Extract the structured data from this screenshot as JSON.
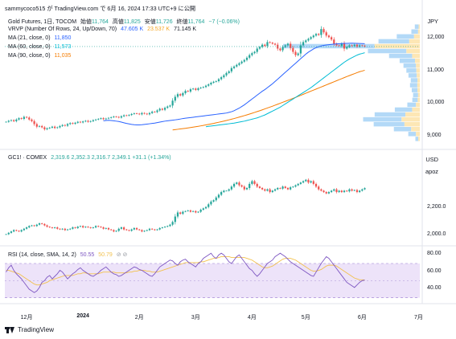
{
  "header": {
    "publish_line": "sammycoco515 が TradingView.com で 6月 16, 2024 17:33 UTC+9 に公開"
  },
  "colors": {
    "up": "#26a69a",
    "down": "#ef5350",
    "ma21": "#2962ff",
    "ma60": "#00bcd4",
    "ma90": "#f57c00",
    "rsi": "#7e57c2",
    "rsi_ma": "#fdd835",
    "rsi_band": "#e9dcf7",
    "vrvp_up": "#b3d9f7",
    "vrvp_down": "#fde7b5"
  },
  "footer": {
    "brand": "TradingView"
  },
  "currency_top": "JPY",
  "currency_mid": "USD",
  "chart_data": [
    {
      "id": "gold_futures",
      "type": "candlestick",
      "title": "Gold Futures, 1日, TOCOM",
      "ohlc_labels": {
        "open_label": "始値",
        "open": "11,764",
        "high_label": "高値",
        "high": "11,825",
        "low_label": "安値",
        "low": "11,726",
        "close_label": "終値",
        "close": "11,764",
        "change": "−7 (−0.06%)"
      },
      "legend": [
        {
          "label": "VRVP (Number Of Rows, 24, Up/Down, 70)",
          "values": [
            "47.605 K",
            "23.537 K",
            "71.145 K"
          ]
        },
        {
          "label": "MA (21, close, 0)",
          "values": [
            "11,850"
          ]
        },
        {
          "label": "MA (60, close, 0)",
          "values": [
            "11,573"
          ]
        },
        {
          "label": "MA (90, close, 0)",
          "values": [
            "11,035"
          ]
        }
      ],
      "y_ticks": [
        "12,000",
        "11,000",
        "10,000",
        "9,000"
      ],
      "y_tick_values": [
        12000,
        11000,
        10000,
        9000
      ],
      "ylim": [
        8700,
        12700
      ],
      "close": [
        9450,
        9480,
        9500,
        9470,
        9520,
        9560,
        9540,
        9600,
        9580,
        9520,
        9470,
        9380,
        9300,
        9320,
        9280,
        9220,
        9250,
        9270,
        9300,
        9260,
        9280,
        9320,
        9350,
        9330,
        9380,
        9410,
        9390,
        9420,
        9450,
        9430,
        9460,
        9480,
        9450,
        9470,
        9500,
        9520,
        9540,
        9560,
        9530,
        9550,
        9570,
        9590,
        9610,
        9600,
        9580,
        9620,
        9650,
        9640,
        9660,
        9690,
        9710,
        9700,
        9680,
        9720,
        9700,
        9680,
        9720,
        9760,
        9750,
        9800,
        9850,
        9820,
        9880,
        9920,
        9950,
        10100,
        10220,
        10300,
        10260,
        10330,
        10400,
        10380,
        10450,
        10470,
        10430,
        10480,
        10500,
        10520,
        10560,
        10600,
        10650,
        10680,
        10700,
        10760,
        10820,
        10880,
        10950,
        11000,
        11100,
        11150,
        11200,
        11250,
        11300,
        11350,
        11420,
        11500,
        11560,
        11600,
        11700,
        11750,
        11820,
        11780,
        11900,
        11880,
        11850,
        11820,
        11700,
        11650,
        11750,
        11800,
        11850,
        11720,
        11600,
        11500,
        11550,
        11800,
        11900,
        11950,
        12000,
        12050,
        12100,
        12150,
        12120,
        12300,
        12200,
        12100,
        12050,
        11980,
        11850,
        11800,
        11780,
        11850,
        11700,
        11750,
        11800,
        11780,
        11820,
        11760,
        11800,
        11790,
        11764
      ],
      "ma21": [
        9480,
        9490,
        9495,
        9490,
        9480,
        9470,
        9460,
        9440,
        9420,
        9400,
        9385,
        9370,
        9360,
        9355,
        9355,
        9360,
        9370,
        9380,
        9390,
        9400,
        9410,
        9425,
        9440,
        9455,
        9470,
        9480,
        9490,
        9500,
        9510,
        9520,
        9535,
        9550,
        9560,
        9570,
        9580,
        9590,
        9600,
        9610,
        9620,
        9630,
        9640,
        9650,
        9660,
        9670,
        9680,
        9690,
        9700,
        9710,
        9720,
        9740,
        9760,
        9790,
        9830,
        9870,
        9920,
        9970,
        10030,
        10090,
        10150,
        10210,
        10270,
        10330,
        10390,
        10440,
        10500,
        10560,
        10620,
        10690,
        10760,
        10830,
        10900,
        10970,
        11040,
        11110,
        11180,
        11250,
        11320,
        11390,
        11460,
        11530,
        11590,
        11640,
        11690,
        11730,
        11760,
        11780,
        11800,
        11810,
        11820,
        11830,
        11840,
        11845,
        11850,
        11855,
        11860,
        11862,
        11865,
        11866,
        11864,
        11860,
        11856,
        11853,
        11850
      ],
      "ma21_start": 38,
      "ma60": [
        9300,
        9310,
        9320,
        9330,
        9340,
        9350,
        9360,
        9370,
        9380,
        9390,
        9400,
        9410,
        9425,
        9440,
        9455,
        9470,
        9490,
        9510,
        9530,
        9550,
        9570,
        9600,
        9630,
        9660,
        9700,
        9740,
        9780,
        9820,
        9860,
        9900,
        9950,
        10000,
        10050,
        10100,
        10150,
        10200,
        10250,
        10300,
        10350,
        10400,
        10450,
        10500,
        10560,
        10620,
        10680,
        10740,
        10800,
        10860,
        10920,
        10980,
        11040,
        11100,
        11160,
        11220,
        11280,
        11330,
        11380,
        11420,
        11460,
        11500,
        11530,
        11550,
        11573
      ],
      "ma60_start": 78,
      "ma90": [
        9200,
        9210,
        9220,
        9230,
        9240,
        9250,
        9262,
        9274,
        9286,
        9298,
        9310,
        9325,
        9340,
        9355,
        9370,
        9385,
        9400,
        9418,
        9436,
        9454,
        9472,
        9490,
        9510,
        9530,
        9550,
        9572,
        9594,
        9616,
        9640,
        9664,
        9688,
        9712,
        9738,
        9764,
        9790,
        9818,
        9846,
        9874,
        9902,
        9930,
        9960,
        9990,
        10020,
        10050,
        10080,
        10110,
        10140,
        10170,
        10200,
        10232,
        10264,
        10296,
        10328,
        10360,
        10392,
        10424,
        10456,
        10488,
        10520,
        10552,
        10584,
        10616,
        10648,
        10680,
        10712,
        10744,
        10776,
        10808,
        10840,
        10870,
        10900,
        10930,
        10960,
        10990,
        11010,
        11035
      ],
      "ma90_start": 65,
      "vrvp_rows": [
        {
          "price_low": 12300,
          "price_high": 12450,
          "up": 2000,
          "down": 600
        },
        {
          "price_low": 12150,
          "price_high": 12300,
          "up": 3500,
          "down": 900
        },
        {
          "price_low": 12000,
          "price_high": 12150,
          "up": 9000,
          "down": 3000
        },
        {
          "price_low": 11850,
          "price_high": 12000,
          "up": 16000,
          "down": 5500
        },
        {
          "price_low": 11700,
          "price_high": 11850,
          "up": 47605,
          "down": 23537
        },
        {
          "price_low": 11550,
          "price_high": 11700,
          "up": 20000,
          "down": 7000
        },
        {
          "price_low": 11400,
          "price_high": 11550,
          "up": 12000,
          "down": 4000
        },
        {
          "price_low": 11250,
          "price_high": 11400,
          "up": 8000,
          "down": 2500
        },
        {
          "price_low": 11100,
          "price_high": 11250,
          "up": 6500,
          "down": 2000
        },
        {
          "price_low": 10950,
          "price_high": 11100,
          "up": 5200,
          "down": 1800
        },
        {
          "price_low": 10800,
          "price_high": 10950,
          "up": 4300,
          "down": 1600
        },
        {
          "price_low": 10650,
          "price_high": 10800,
          "up": 3500,
          "down": 1200
        },
        {
          "price_low": 10500,
          "price_high": 10650,
          "up": 3800,
          "down": 1300
        },
        {
          "price_low": 10350,
          "price_high": 10500,
          "up": 3000,
          "down": 1200
        },
        {
          "price_low": 10200,
          "price_high": 10350,
          "up": 2600,
          "down": 900
        },
        {
          "price_low": 10050,
          "price_high": 10200,
          "up": 2800,
          "down": 1100
        },
        {
          "price_low": 9900,
          "price_high": 10050,
          "up": 4500,
          "down": 2000
        },
        {
          "price_low": 9750,
          "price_high": 9900,
          "up": 9000,
          "down": 4000
        },
        {
          "price_low": 9600,
          "price_high": 9750,
          "up": 16000,
          "down": 7500
        },
        {
          "price_low": 9450,
          "price_high": 9600,
          "up": 20000,
          "down": 9500
        },
        {
          "price_low": 9300,
          "price_high": 9450,
          "up": 16000,
          "down": 8000
        },
        {
          "price_low": 9150,
          "price_high": 9300,
          "up": 9000,
          "down": 4500
        },
        {
          "price_low": 9000,
          "price_high": 9150,
          "up": 4000,
          "down": 2000
        },
        {
          "price_low": 8850,
          "price_high": 9000,
          "up": 1500,
          "down": 800
        }
      ],
      "last_price_line": 11764
    },
    {
      "id": "gc1_comex",
      "type": "candlestick",
      "title": "GC1! · COMEX",
      "ohlc_values": "2,319.6  2,352.3  2,316.7  2,349.1  +31.1 (+1.34%)",
      "y_ticks": [
        "2,200.0",
        "2,000.0"
      ],
      "y_tick_values": [
        2200,
        2000
      ],
      "corner_label": "apoz",
      "ylim": [
        1960,
        2480
      ],
      "close": [
        2010,
        2020,
        2030,
        2040,
        2035,
        2030,
        2040,
        2050,
        2060,
        2070,
        2075,
        2070,
        2080,
        2090,
        2085,
        2075,
        2065,
        2060,
        2055,
        2060,
        2050,
        2045,
        2050,
        2040,
        2045,
        2050,
        2060,
        2055,
        2065,
        2070,
        2060,
        2065,
        2060,
        2055,
        2060,
        2070,
        2065,
        2060,
        2050,
        2055,
        2045,
        2040,
        2030,
        2035,
        2050,
        2060,
        2045,
        2040,
        2035,
        2045,
        2055,
        2045,
        2040,
        2030,
        2035,
        2040,
        2050,
        2045,
        2040,
        2045,
        2055,
        2060,
        2065,
        2070,
        2080,
        2100,
        2140,
        2170,
        2160,
        2175,
        2180,
        2185,
        2175,
        2180,
        2170,
        2175,
        2190,
        2200,
        2210,
        2230,
        2250,
        2260,
        2280,
        2300,
        2320,
        2330,
        2330,
        2340,
        2360,
        2380,
        2390,
        2370,
        2360,
        2340,
        2350,
        2380,
        2400,
        2380,
        2360,
        2350,
        2340,
        2330,
        2340,
        2320,
        2330,
        2340,
        2350,
        2345,
        2360,
        2350,
        2340,
        2355,
        2360,
        2370,
        2380,
        2390,
        2400,
        2410,
        2390,
        2400,
        2380,
        2360,
        2340,
        2330,
        2320,
        2310,
        2320,
        2330,
        2340,
        2320,
        2330,
        2320,
        2330,
        2325,
        2340,
        2330,
        2335,
        2320,
        2330,
        2340,
        2349
      ]
    },
    {
      "id": "rsi",
      "type": "line",
      "title": "RSI (14, close, SMA, 14, 2)",
      "values_label": [
        "50.55",
        "50.79"
      ],
      "y_ticks": [
        "80.00",
        "60.00",
        "40.00"
      ],
      "y_tick_values": [
        80,
        60,
        40
      ],
      "band": [
        30,
        70
      ],
      "ylim": [
        25,
        85
      ],
      "rsi": [
        60,
        65,
        68,
        62,
        58,
        55,
        52,
        48,
        44,
        40,
        38,
        36,
        38,
        42,
        48,
        50,
        54,
        56,
        52,
        55,
        58,
        62,
        60,
        56,
        52,
        55,
        58,
        60,
        63,
        65,
        62,
        60,
        58,
        56,
        55,
        57,
        59,
        62,
        64,
        66,
        63,
        60,
        58,
        57,
        55,
        56,
        58,
        60,
        62,
        64,
        66,
        65,
        63,
        62,
        60,
        58,
        56,
        55,
        58,
        62,
        66,
        68,
        70,
        72,
        74,
        73,
        70,
        68,
        72,
        74,
        75,
        72,
        70,
        68,
        66,
        70,
        72,
        76,
        78,
        80,
        82,
        78,
        76,
        80,
        82,
        80,
        76,
        72,
        70,
        74,
        78,
        80,
        76,
        72,
        68,
        64,
        62,
        58,
        55,
        58,
        62,
        66,
        70,
        72,
        74,
        78,
        80,
        82,
        80,
        78,
        75,
        72,
        70,
        68,
        66,
        64,
        62,
        60,
        58,
        56,
        55,
        60,
        65,
        70,
        74,
        78,
        76,
        72,
        68,
        64,
        60,
        56,
        52,
        48,
        46,
        44,
        42,
        45,
        48,
        50,
        50.55
      ],
      "rsi_ma": [
        62,
        62,
        61,
        60,
        59,
        58,
        56,
        54,
        52,
        50,
        48,
        46,
        45,
        45,
        46,
        47,
        48,
        50,
        51,
        52,
        53,
        54,
        55,
        56,
        56,
        56,
        56,
        57,
        58,
        58,
        59,
        59,
        58,
        58,
        58,
        58,
        58,
        59,
        60,
        60,
        60,
        60,
        60,
        59,
        59,
        59,
        59,
        59,
        60,
        60,
        61,
        61,
        62,
        62,
        62,
        61,
        61,
        60,
        60,
        60,
        61,
        62,
        63,
        64,
        65,
        66,
        67,
        68,
        69,
        70,
        71,
        71,
        71,
        71,
        71,
        71,
        72,
        72,
        73,
        74,
        75,
        76,
        76,
        77,
        78,
        78,
        78,
        78,
        77,
        77,
        77,
        77,
        77,
        77,
        76,
        75,
        74,
        72,
        70,
        68,
        66,
        65,
        65,
        66,
        67,
        69,
        71,
        73,
        75,
        76,
        76,
        76,
        75,
        74,
        72,
        70,
        68,
        66,
        64,
        62,
        61,
        61,
        62,
        63,
        65,
        67,
        68,
        68,
        68,
        67,
        65,
        63,
        61,
        59,
        57,
        55,
        53,
        52,
        51,
        51,
        50.79
      ]
    }
  ],
  "x_axis": {
    "ticks": [
      {
        "label": "12月",
        "index": 8,
        "bold": false
      },
      {
        "label": "2024",
        "index": 30,
        "bold": true
      },
      {
        "label": "2月",
        "index": 52,
        "bold": false
      },
      {
        "label": "3月",
        "index": 74,
        "bold": false
      },
      {
        "label": "4月",
        "index": 96,
        "bold": false
      },
      {
        "label": "5月",
        "index": 117,
        "bold": false
      },
      {
        "label": "6月",
        "index": 139,
        "bold": false
      },
      {
        "label": "7月",
        "index": 161,
        "bold": false
      }
    ]
  }
}
